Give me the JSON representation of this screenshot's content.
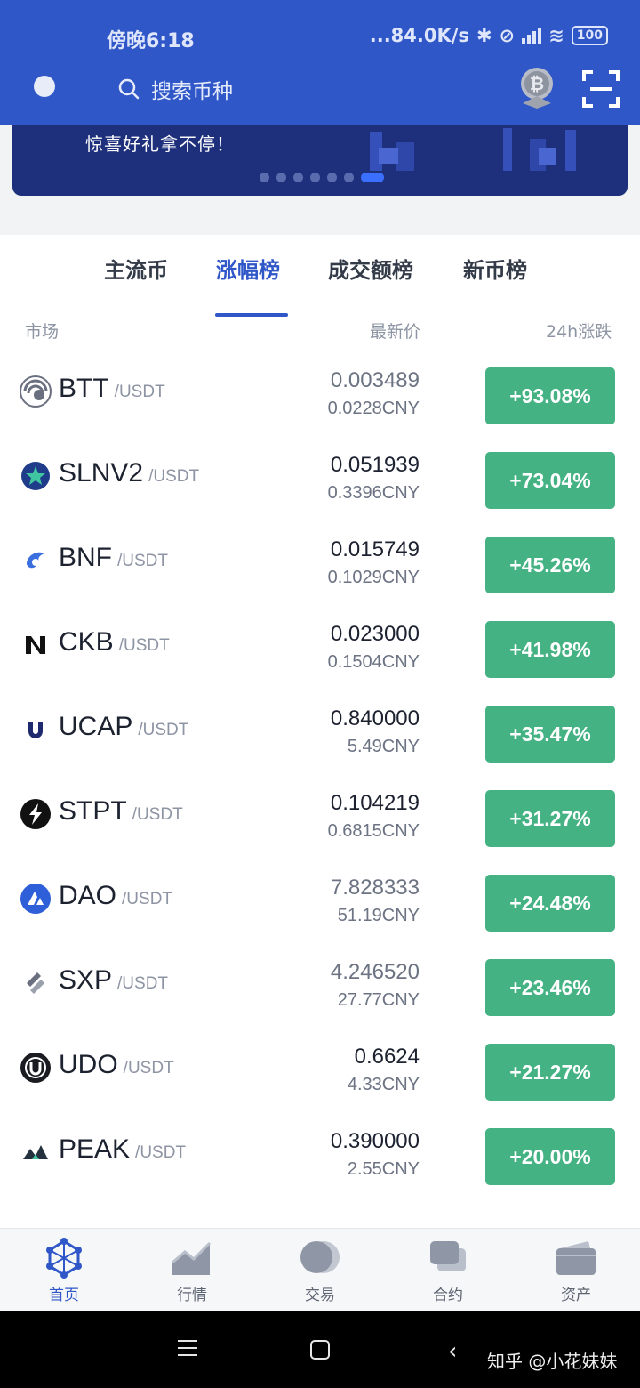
{
  "status_bar": {
    "time": "傍晚6:18",
    "net_speed": "...84.0K/s",
    "battery": "100"
  },
  "search": {
    "placeholder": "搜索币种"
  },
  "banner": {
    "text": "惊喜好礼拿不停！"
  },
  "tabs": [
    {
      "label": "主流币",
      "active": false
    },
    {
      "label": "涨幅榜",
      "active": true
    },
    {
      "label": "成交额榜",
      "active": false
    },
    {
      "label": "新币榜",
      "active": false
    }
  ],
  "columns": {
    "market": "市场",
    "price": "最新价",
    "change": "24h涨跌"
  },
  "rows": [
    {
      "symbol": "BTT",
      "quote": "/USDT",
      "price": "0.003489",
      "cny": "0.0228CNY",
      "change": "+93.08%"
    },
    {
      "symbol": "SLNV2",
      "quote": "/USDT",
      "price": "0.051939",
      "cny": "0.3396CNY",
      "change": "+73.04%"
    },
    {
      "symbol": "BNF",
      "quote": "/USDT",
      "price": "0.015749",
      "cny": "0.1029CNY",
      "change": "+45.26%"
    },
    {
      "symbol": "CKB",
      "quote": "/USDT",
      "price": "0.023000",
      "cny": "0.1504CNY",
      "change": "+41.98%"
    },
    {
      "symbol": "UCAP",
      "quote": "/USDT",
      "price": "0.840000",
      "cny": "5.49CNY",
      "change": "+35.47%"
    },
    {
      "symbol": "STPT",
      "quote": "/USDT",
      "price": "0.104219",
      "cny": "0.6815CNY",
      "change": "+31.27%"
    },
    {
      "symbol": "DAO",
      "quote": "/USDT",
      "price": "7.828333",
      "cny": "51.19CNY",
      "change": "+24.48%"
    },
    {
      "symbol": "SXP",
      "quote": "/USDT",
      "price": "4.246520",
      "cny": "27.77CNY",
      "change": "+23.46%"
    },
    {
      "symbol": "UDO",
      "quote": "/USDT",
      "price": "0.6624",
      "cny": "4.33CNY",
      "change": "+21.27%"
    },
    {
      "symbol": "PEAK",
      "quote": "/USDT",
      "price": "0.390000",
      "cny": "2.55CNY",
      "change": "+20.00%"
    }
  ],
  "bottom_nav": [
    {
      "label": "首页",
      "icon": "home-network-icon",
      "active": true
    },
    {
      "label": "行情",
      "icon": "market-chart-icon",
      "active": false
    },
    {
      "label": "交易",
      "icon": "trade-coins-icon",
      "active": false
    },
    {
      "label": "合约",
      "icon": "contract-cards-icon",
      "active": false
    },
    {
      "label": "资产",
      "icon": "wallet-icon",
      "active": false
    }
  ],
  "watermark": "知乎 @小花妹妹",
  "colors": {
    "brand_blue": "#2f57c8",
    "gain_green": "#44b283"
  }
}
